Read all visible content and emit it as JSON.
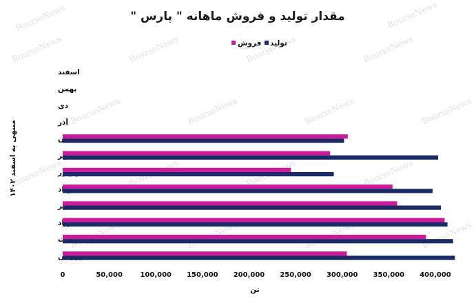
{
  "chart_data": {
    "type": "bar",
    "orientation": "horizontal",
    "title": "مقدار تولید و فروش ماهانه \" پارس \"",
    "xlabel": "تن",
    "ylabel": "منتهی به اسفند ۱۴۰۲",
    "xlim": [
      0,
      400000
    ],
    "x_ticks": [
      0,
      50000,
      100000,
      150000,
      200000,
      250000,
      300000,
      350000,
      400000
    ],
    "x_tick_labels": [
      "0",
      "50,000",
      "100,000",
      "150,000",
      "200,000",
      "250,000",
      "300,000",
      "350,000",
      "400,000"
    ],
    "categories": [
      "فروردین",
      "اردیبهشت",
      "خرداد",
      "تیر",
      "مرداد",
      "شهریور",
      "مهر",
      "آبان",
      "آذر",
      "دی",
      "بهمن",
      "اسفند"
    ],
    "series": [
      {
        "name": "فروش",
        "color": "#cc1a9c",
        "values": [
          305000,
          390000,
          410000,
          359000,
          354000,
          245000,
          287000,
          306000,
          null,
          null,
          null,
          null
        ]
      },
      {
        "name": "تولید",
        "color": "#1b2a66",
        "values": [
          421000,
          419000,
          413000,
          406000,
          397000,
          291000,
          403000,
          302000,
          null,
          null,
          null,
          null
        ]
      }
    ],
    "legend_position": "top-center",
    "grid": false,
    "watermark": "BourseNews"
  }
}
